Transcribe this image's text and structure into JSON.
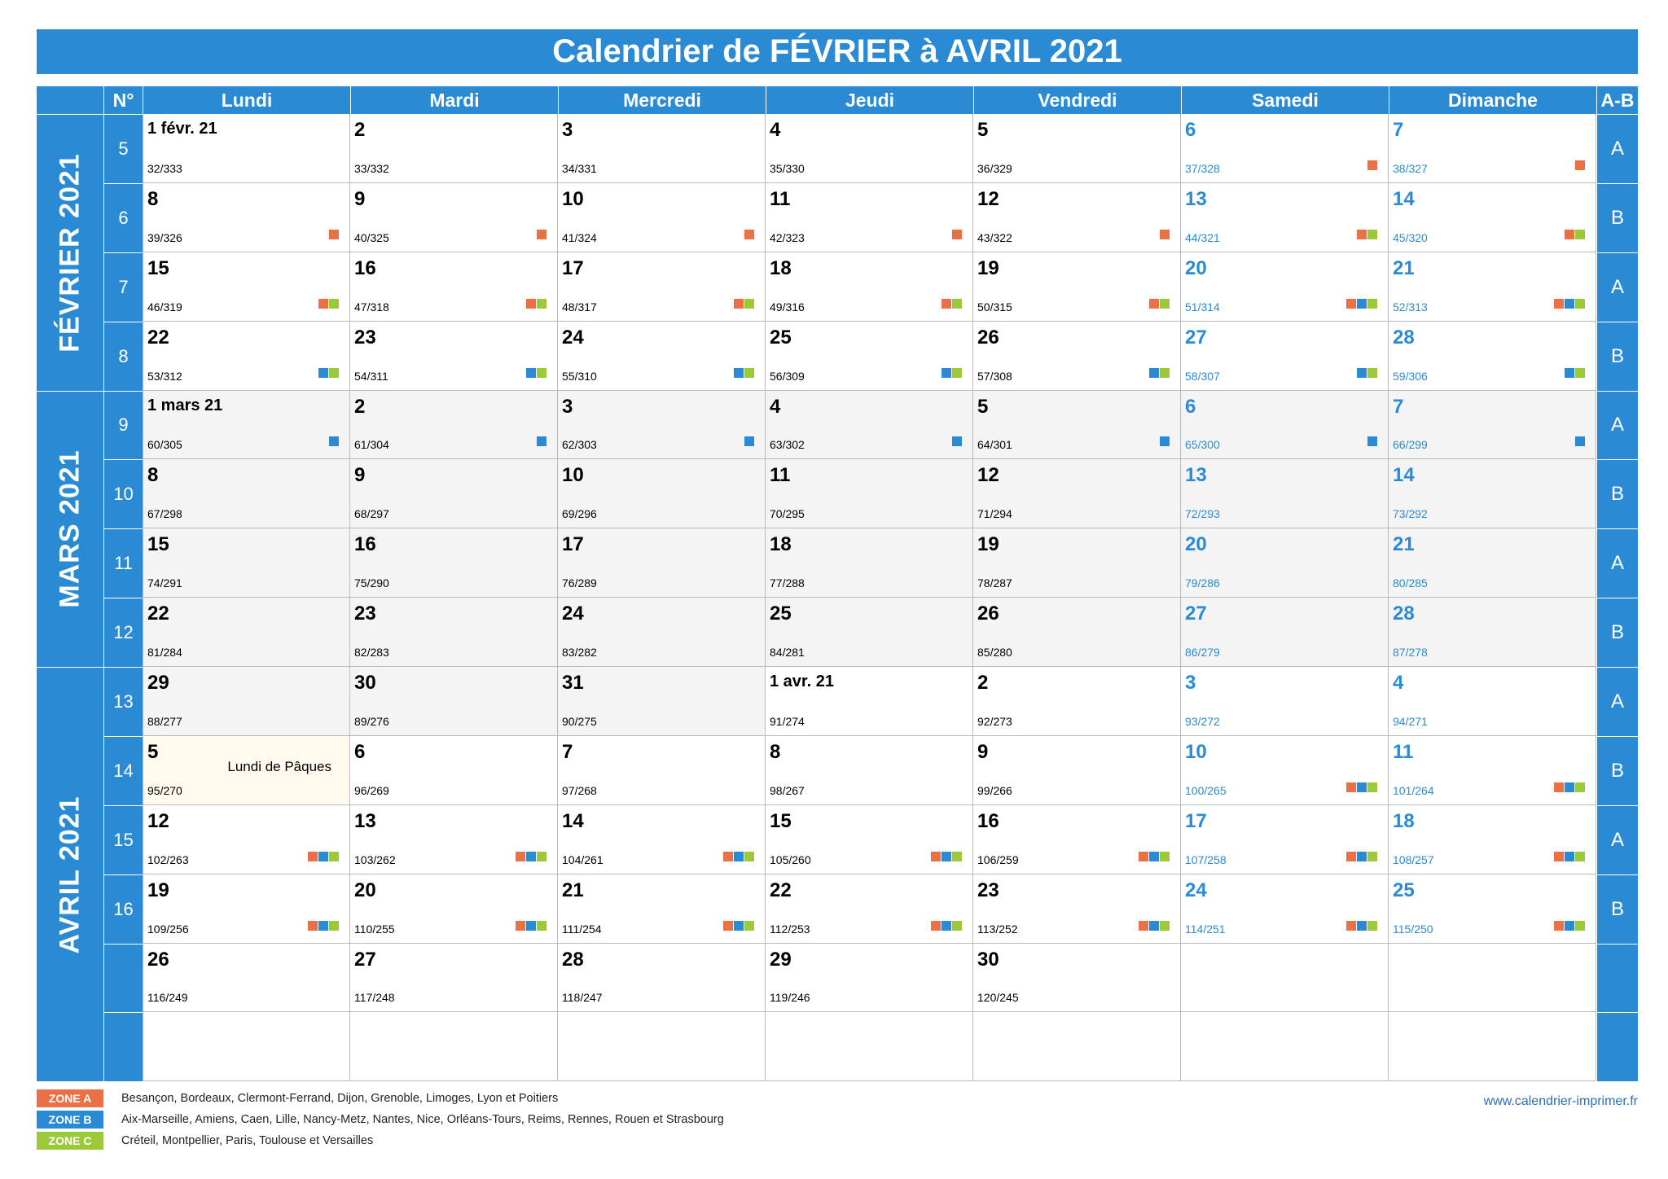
{
  "title": "Calendrier de FÉVRIER à AVRIL 2021",
  "header": {
    "num": "N°",
    "days": [
      "Lundi",
      "Mardi",
      "Mercredi",
      "Jeudi",
      "Vendredi",
      "Samedi",
      "Dimanche"
    ],
    "ab": "A-B"
  },
  "months": [
    "FÉVRIER 2021",
    "MARS 2021",
    "AVRIL 2021"
  ],
  "weeks": [
    {
      "n": "5",
      "ab": "A",
      "days": [
        {
          "d": "1 févr. 21",
          "o": "32/333",
          "z": ""
        },
        {
          "d": "2",
          "o": "33/332",
          "z": ""
        },
        {
          "d": "3",
          "o": "34/331",
          "z": ""
        },
        {
          "d": "4",
          "o": "35/330",
          "z": ""
        },
        {
          "d": "5",
          "o": "36/329",
          "z": ""
        },
        {
          "d": "6",
          "o": "37/328",
          "z": "a"
        },
        {
          "d": "7",
          "o": "38/327",
          "z": "a"
        }
      ]
    },
    {
      "n": "6",
      "ab": "B",
      "days": [
        {
          "d": "8",
          "o": "39/326",
          "z": "a"
        },
        {
          "d": "9",
          "o": "40/325",
          "z": "a"
        },
        {
          "d": "10",
          "o": "41/324",
          "z": "a"
        },
        {
          "d": "11",
          "o": "42/323",
          "z": "a"
        },
        {
          "d": "12",
          "o": "43/322",
          "z": "a"
        },
        {
          "d": "13",
          "o": "44/321",
          "z": "ac"
        },
        {
          "d": "14",
          "o": "45/320",
          "z": "ac"
        }
      ]
    },
    {
      "n": "7",
      "ab": "A",
      "days": [
        {
          "d": "15",
          "o": "46/319",
          "z": "ac"
        },
        {
          "d": "16",
          "o": "47/318",
          "z": "ac"
        },
        {
          "d": "17",
          "o": "48/317",
          "z": "ac"
        },
        {
          "d": "18",
          "o": "49/316",
          "z": "ac"
        },
        {
          "d": "19",
          "o": "50/315",
          "z": "ac"
        },
        {
          "d": "20",
          "o": "51/314",
          "z": "abc"
        },
        {
          "d": "21",
          "o": "52/313",
          "z": "abc"
        }
      ]
    },
    {
      "n": "8",
      "ab": "B",
      "days": [
        {
          "d": "22",
          "o": "53/312",
          "z": "bc"
        },
        {
          "d": "23",
          "o": "54/311",
          "z": "bc"
        },
        {
          "d": "24",
          "o": "55/310",
          "z": "bc"
        },
        {
          "d": "25",
          "o": "56/309",
          "z": "bc"
        },
        {
          "d": "26",
          "o": "57/308",
          "z": "bc"
        },
        {
          "d": "27",
          "o": "58/307",
          "z": "bc"
        },
        {
          "d": "28",
          "o": "59/306",
          "z": "bc"
        }
      ]
    },
    {
      "n": "9",
      "ab": "A",
      "days": [
        {
          "d": "1 mars 21",
          "o": "60/305",
          "z": "b"
        },
        {
          "d": "2",
          "o": "61/304",
          "z": "b"
        },
        {
          "d": "3",
          "o": "62/303",
          "z": "b"
        },
        {
          "d": "4",
          "o": "63/302",
          "z": "b"
        },
        {
          "d": "5",
          "o": "64/301",
          "z": "b"
        },
        {
          "d": "6",
          "o": "65/300",
          "z": "b"
        },
        {
          "d": "7",
          "o": "66/299",
          "z": "b"
        }
      ]
    },
    {
      "n": "10",
      "ab": "B",
      "days": [
        {
          "d": "8",
          "o": "67/298",
          "z": ""
        },
        {
          "d": "9",
          "o": "68/297",
          "z": ""
        },
        {
          "d": "10",
          "o": "69/296",
          "z": ""
        },
        {
          "d": "11",
          "o": "70/295",
          "z": ""
        },
        {
          "d": "12",
          "o": "71/294",
          "z": ""
        },
        {
          "d": "13",
          "o": "72/293",
          "z": ""
        },
        {
          "d": "14",
          "o": "73/292",
          "z": ""
        }
      ]
    },
    {
      "n": "11",
      "ab": "A",
      "days": [
        {
          "d": "15",
          "o": "74/291",
          "z": ""
        },
        {
          "d": "16",
          "o": "75/290",
          "z": ""
        },
        {
          "d": "17",
          "o": "76/289",
          "z": ""
        },
        {
          "d": "18",
          "o": "77/288",
          "z": ""
        },
        {
          "d": "19",
          "o": "78/287",
          "z": ""
        },
        {
          "d": "20",
          "o": "79/286",
          "z": ""
        },
        {
          "d": "21",
          "o": "80/285",
          "z": ""
        }
      ]
    },
    {
      "n": "12",
      "ab": "B",
      "days": [
        {
          "d": "22",
          "o": "81/284",
          "z": ""
        },
        {
          "d": "23",
          "o": "82/283",
          "z": ""
        },
        {
          "d": "24",
          "o": "83/282",
          "z": ""
        },
        {
          "d": "25",
          "o": "84/281",
          "z": ""
        },
        {
          "d": "26",
          "o": "85/280",
          "z": ""
        },
        {
          "d": "27",
          "o": "86/279",
          "z": ""
        },
        {
          "d": "28",
          "o": "87/278",
          "z": ""
        }
      ]
    },
    {
      "n": "13",
      "ab": "A",
      "days": [
        {
          "d": "29",
          "o": "88/277",
          "z": ""
        },
        {
          "d": "30",
          "o": "89/276",
          "z": ""
        },
        {
          "d": "31",
          "o": "90/275",
          "z": ""
        },
        {
          "d": "1 avr. 21",
          "o": "91/274",
          "z": ""
        },
        {
          "d": "2",
          "o": "92/273",
          "z": ""
        },
        {
          "d": "3",
          "o": "93/272",
          "z": ""
        },
        {
          "d": "4",
          "o": "94/271",
          "z": ""
        }
      ]
    },
    {
      "n": "14",
      "ab": "B",
      "days": [
        {
          "d": "5",
          "o": "95/270",
          "z": "",
          "event": "Lundi de Pâques"
        },
        {
          "d": "6",
          "o": "96/269",
          "z": ""
        },
        {
          "d": "7",
          "o": "97/268",
          "z": ""
        },
        {
          "d": "8",
          "o": "98/267",
          "z": ""
        },
        {
          "d": "9",
          "o": "99/266",
          "z": ""
        },
        {
          "d": "10",
          "o": "100/265",
          "z": "abc"
        },
        {
          "d": "11",
          "o": "101/264",
          "z": "abc"
        }
      ]
    },
    {
      "n": "15",
      "ab": "A",
      "days": [
        {
          "d": "12",
          "o": "102/263",
          "z": "abc"
        },
        {
          "d": "13",
          "o": "103/262",
          "z": "abc"
        },
        {
          "d": "14",
          "o": "104/261",
          "z": "abc"
        },
        {
          "d": "15",
          "o": "105/260",
          "z": "abc"
        },
        {
          "d": "16",
          "o": "106/259",
          "z": "abc"
        },
        {
          "d": "17",
          "o": "107/258",
          "z": "abc"
        },
        {
          "d": "18",
          "o": "108/257",
          "z": "abc"
        }
      ]
    },
    {
      "n": "16",
      "ab": "B",
      "days": [
        {
          "d": "19",
          "o": "109/256",
          "z": "abc"
        },
        {
          "d": "20",
          "o": "110/255",
          "z": "abc"
        },
        {
          "d": "21",
          "o": "111/254",
          "z": "abc"
        },
        {
          "d": "22",
          "o": "112/253",
          "z": "abc"
        },
        {
          "d": "23",
          "o": "113/252",
          "z": "abc"
        },
        {
          "d": "24",
          "o": "114/251",
          "z": "abc"
        },
        {
          "d": "25",
          "o": "115/250",
          "z": "abc"
        }
      ]
    },
    {
      "n": "",
      "ab": "",
      "days": [
        {
          "d": "26",
          "o": "116/249",
          "z": ""
        },
        {
          "d": "27",
          "o": "117/248",
          "z": ""
        },
        {
          "d": "28",
          "o": "118/247",
          "z": ""
        },
        {
          "d": "29",
          "o": "119/246",
          "z": ""
        },
        {
          "d": "30",
          "o": "120/245",
          "z": ""
        },
        {
          "d": "",
          "o": "",
          "z": ""
        },
        {
          "d": "",
          "o": "",
          "z": ""
        }
      ]
    },
    {
      "n": "",
      "ab": "",
      "days": [
        {
          "d": "",
          "o": "",
          "z": ""
        },
        {
          "d": "",
          "o": "",
          "z": ""
        },
        {
          "d": "",
          "o": "",
          "z": ""
        },
        {
          "d": "",
          "o": "",
          "z": ""
        },
        {
          "d": "",
          "o": "",
          "z": ""
        },
        {
          "d": "",
          "o": "",
          "z": ""
        },
        {
          "d": "",
          "o": "",
          "z": ""
        }
      ]
    }
  ],
  "legend": [
    {
      "label": "ZONE A",
      "color": "#ec7045",
      "text": "Besançon, Bordeaux, Clermont-Ferrand, Dijon, Grenoble, Limoges, Lyon et Poitiers"
    },
    {
      "label": "ZONE B",
      "color": "#2a8bd4",
      "text": "Aix-Marseille, Amiens, Caen, Lille, Nancy-Metz, Nantes, Nice, Orléans-Tours, Reims, Rennes, Rouen et Strasbourg"
    },
    {
      "label": "ZONE C",
      "color": "#9bc93a",
      "text": "Créteil, Montpellier, Paris, Toulouse et Versailles"
    }
  ],
  "site_url": "www.calendrier-imprimer.fr",
  "colors": {
    "accent": "#2a8bd4",
    "zone_a": "#ec7045",
    "zone_b": "#2a8bd4",
    "zone_c": "#9bc93a",
    "holiday_bg": "#fff9ee",
    "march_bg": "#f4f4f4"
  }
}
